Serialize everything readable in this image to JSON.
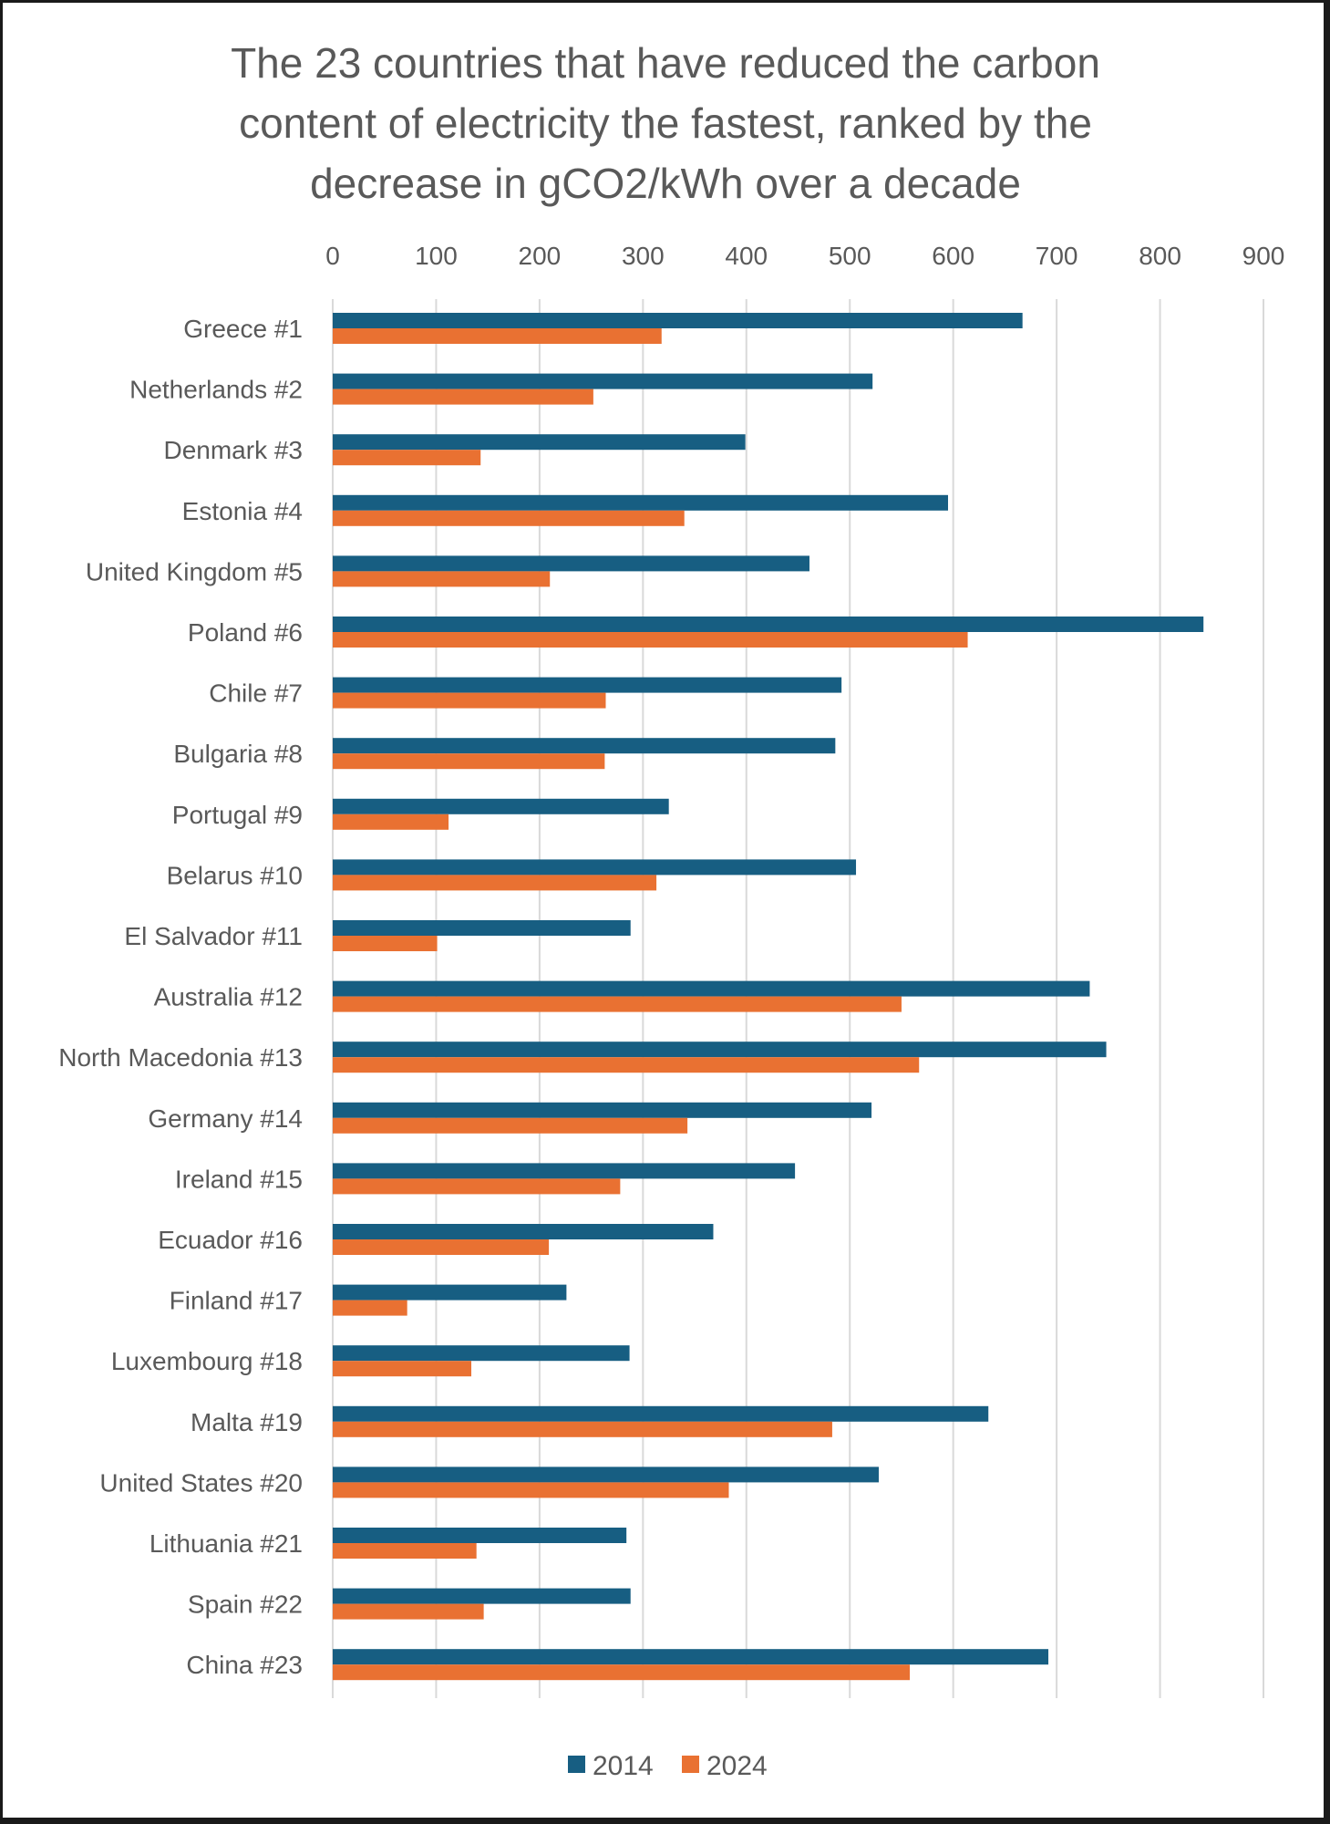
{
  "chart_data": {
    "type": "bar",
    "orientation": "horizontal",
    "title": "The 23 countries that have reduced the carbon content of electricity the fastest, ranked by the decrease in gCO2/kWh over a decade",
    "title_lines": [
      "The 23 countries that have reduced the carbon",
      "content of electricity the fastest, ranked by the",
      "decrease in gCO2/kWh over a decade"
    ],
    "xlabel": "",
    "ylabel": "",
    "xlim": [
      0,
      900
    ],
    "x_ticks": [
      0,
      100,
      200,
      300,
      400,
      500,
      600,
      700,
      800,
      900
    ],
    "x_axis_position": "top",
    "grid": "vertical",
    "legend": "bottom",
    "categories": [
      "Greece #1",
      "Netherlands #2",
      "Denmark #3",
      "Estonia #4",
      "United Kingdom #5",
      "Poland #6",
      "Chile #7",
      "Bulgaria #8",
      "Portugal #9",
      "Belarus #10",
      "El Salvador #11",
      "Australia #12",
      "North Macedonia #13",
      "Germany #14",
      "Ireland #15",
      "Ecuador #16",
      "Finland #17",
      "Luxembourg #18",
      "Malta #19",
      "United States #20",
      "Lithuania #21",
      "Spain #22",
      "China #23"
    ],
    "series": [
      {
        "name": "2014",
        "color": "#175E82",
        "values": [
          667,
          522,
          399,
          595,
          461,
          842,
          492,
          486,
          325,
          506,
          288,
          732,
          748,
          521,
          447,
          368,
          226,
          287,
          634,
          528,
          284,
          288,
          692
        ]
      },
      {
        "name": "2024",
        "color": "#E97132",
        "values": [
          318,
          252,
          143,
          340,
          210,
          614,
          264,
          263,
          112,
          313,
          101,
          550,
          567,
          343,
          278,
          209,
          72,
          134,
          483,
          383,
          139,
          146,
          558
        ]
      }
    ]
  }
}
